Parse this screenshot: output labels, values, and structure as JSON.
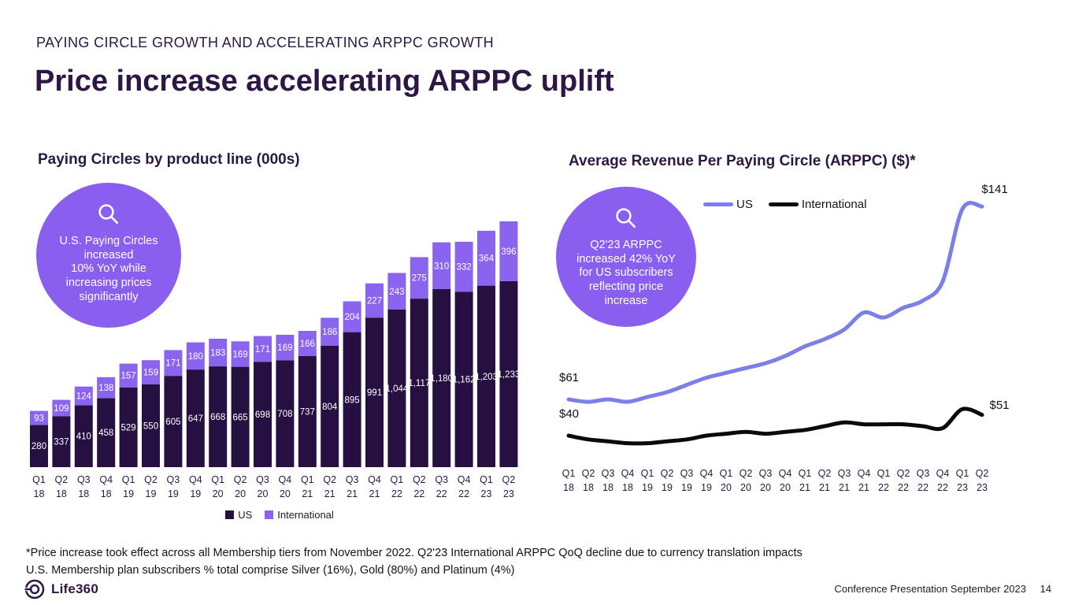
{
  "slide": {
    "kicker": "PAYING CIRCLE GROWTH AND ACCELERATING ARPPC GROWTH",
    "title": "Price increase accelerating ARPPC uplift",
    "footnote": {
      "line1": "*Price increase took effect across all Membership tiers from November 2022. Q2'23 International ARPPC QoQ decline due to currency translation impacts",
      "line2": "U.S. Membership plan subscribers % total comprise Silver (16%), Gold (80%) and Platinum (4%)"
    },
    "footer": {
      "brand": "Life360",
      "label": "Conference Presentation September 2023",
      "page_number": "14"
    }
  },
  "callouts": {
    "left": {
      "icon": "magnifier-icon",
      "text": "U.S. Paying Circles\nincreased\n10% YoY while\nincreasing prices\nsignificantly"
    },
    "right": {
      "icon": "magnifier-icon",
      "text": "Q2'23 ARPPC\nincreased 42% YoY\nfor US subscribers\nreflecting price\nincrease"
    }
  },
  "colors": {
    "dark_purple": "#2d1745",
    "bar_us": "#261042",
    "bar_international": "#8a63ee",
    "bubble_purple": "#8a5ff0",
    "line_us": "#7b7fe8",
    "line_international": "#0a0a0a"
  },
  "chart_data": [
    {
      "type": "bar",
      "stacked": true,
      "title": "Paying Circles by product line (000s)",
      "categories": [
        "Q1 18",
        "Q2 18",
        "Q3 18",
        "Q4 18",
        "Q1 19",
        "Q2 19",
        "Q3 19",
        "Q4 19",
        "Q1 20",
        "Q2 20",
        "Q3 20",
        "Q4 20",
        "Q1 21",
        "Q2 21",
        "Q3 21",
        "Q4 21",
        "Q1 22",
        "Q2 22",
        "Q3 22",
        "Q4 22",
        "Q1 23",
        "Q2 23"
      ],
      "series": [
        {
          "name": "US",
          "color": "#261042",
          "values": [
            280,
            337,
            410,
            458,
            529,
            550,
            605,
            647,
            668,
            665,
            698,
            708,
            737,
            804,
            895,
            991,
            1044,
            1117,
            1180,
            1162,
            1203,
            1233
          ]
        },
        {
          "name": "International",
          "color": "#8a63ee",
          "values": [
            93,
            109,
            124,
            138,
            157,
            159,
            171,
            180,
            183,
            169,
            171,
            169,
            166,
            186,
            204,
            227,
            243,
            275,
            310,
            332,
            364,
            396
          ]
        }
      ],
      "legend": [
        "US",
        "International"
      ],
      "legend_position": "bottom",
      "value_labels": "inside-white",
      "ylim": [
        0,
        1700
      ],
      "grid": false
    },
    {
      "type": "line",
      "title": "Average Revenue Per Paying Circle (ARPPC) ($)*",
      "categories": [
        "Q1 18",
        "Q2 18",
        "Q3 18",
        "Q4 18",
        "Q1 19",
        "Q2 19",
        "Q3 19",
        "Q4 19",
        "Q1 20",
        "Q2 20",
        "Q3 20",
        "Q4 20",
        "Q1 21",
        "Q2 21",
        "Q3 21",
        "Q4 21",
        "Q1 22",
        "Q2 22",
        "Q3 22",
        "Q4 22",
        "Q1 23",
        "Q2 23"
      ],
      "series": [
        {
          "name": "US",
          "color": "#7b7fe8",
          "values": [
            61,
            60,
            61,
            60,
            62,
            64,
            67,
            70,
            72,
            74,
            76,
            79,
            83,
            86,
            90,
            97,
            95,
            99,
            102,
            110,
            140,
            141
          ],
          "start_label": "$61",
          "end_label": "$141"
        },
        {
          "name": "International",
          "color": "#0a0a0a",
          "values": [
            40,
            38,
            37,
            36,
            36,
            37,
            38,
            40,
            41,
            42,
            41,
            42,
            43,
            45,
            47,
            46,
            46,
            46,
            45,
            44,
            54,
            51
          ],
          "start_label": "$40",
          "end_label": "$51"
        }
      ],
      "legend": [
        "US",
        "International"
      ],
      "legend_position": "top",
      "annotations": [
        "$61",
        "$40",
        "$141",
        "$51"
      ],
      "grid": false
    }
  ]
}
